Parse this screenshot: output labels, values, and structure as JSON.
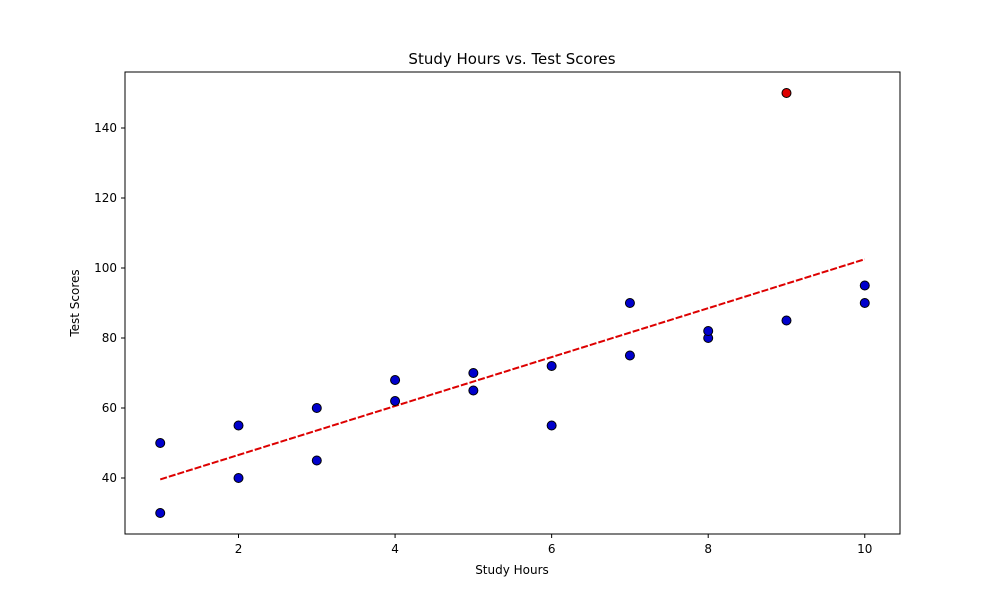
{
  "chart_data": {
    "type": "scatter",
    "title": "Study Hours vs. Test Scores",
    "xlabel": "Study Hours",
    "ylabel": "Test Scores",
    "xlim": [
      0.55,
      10.45
    ],
    "ylim": [
      24,
      156
    ],
    "xticks": [
      2,
      4,
      6,
      8,
      10
    ],
    "yticks": [
      40,
      60,
      80,
      100,
      120,
      140
    ],
    "grid": false,
    "series": [
      {
        "kind": "points",
        "color": "#0000cc",
        "edge_color": "#000000",
        "points": [
          [
            1,
            30
          ],
          [
            1,
            50
          ],
          [
            2,
            40
          ],
          [
            2,
            55
          ],
          [
            3,
            45
          ],
          [
            3,
            60
          ],
          [
            4,
            62
          ],
          [
            4,
            68
          ],
          [
            5,
            65
          ],
          [
            5,
            70
          ],
          [
            6,
            55
          ],
          [
            6,
            72
          ],
          [
            7,
            75
          ],
          [
            7,
            90
          ],
          [
            8,
            80
          ],
          [
            8,
            82
          ],
          [
            9,
            85
          ],
          [
            10,
            90
          ],
          [
            10,
            95
          ]
        ]
      },
      {
        "kind": "points",
        "color": "#dd0000",
        "edge_color": "#000000",
        "points": [
          [
            9,
            150
          ]
        ]
      },
      {
        "kind": "line",
        "color": "#dd0000",
        "style": "dashed",
        "points": [
          [
            1,
            39.6
          ],
          [
            10,
            102.5
          ]
        ]
      }
    ]
  }
}
